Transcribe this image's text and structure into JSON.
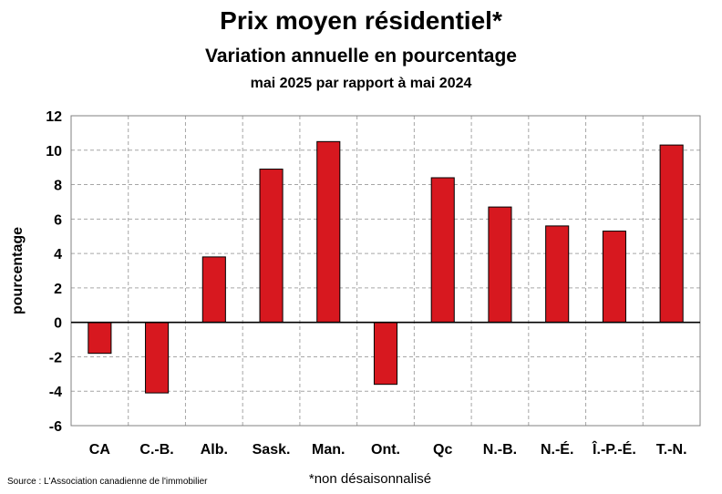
{
  "chart_data": {
    "type": "bar",
    "title": "Prix moyen résidentiel*",
    "subtitle": "Variation annuelle en pourcentage",
    "subtitle2": "mai 2025 par rapport à mai 2024",
    "ylabel": "pourcentage",
    "xlabel": "",
    "ylim": [
      -6,
      12
    ],
    "yticks": [
      -6,
      -4,
      -2,
      0,
      2,
      4,
      6,
      8,
      10,
      12
    ],
    "grid": true,
    "categories": [
      "CA",
      "C.-B.",
      "Alb.",
      "Sask.",
      "Man.",
      "Ont.",
      "Qc",
      "N.-B.",
      "N.-É.",
      "Î.-P.-É.",
      "T.-N."
    ],
    "values": [
      -1.8,
      -4.1,
      3.8,
      8.9,
      10.5,
      -3.6,
      8.4,
      6.7,
      5.6,
      5.3,
      10.3
    ],
    "bar_color": "#d7181f"
  },
  "source": "Source : L'Association canadienne de l'immobilier",
  "footnote": "*non désaisonnalisé"
}
